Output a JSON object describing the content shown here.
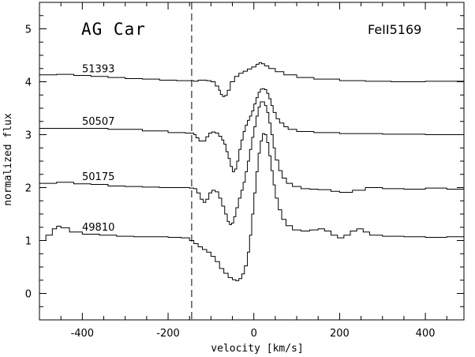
{
  "chart_data": {
    "type": "line",
    "title": "AG Car",
    "subtitle": "FeII5169",
    "xlabel": "velocity [km/s]",
    "ylabel": "normalized flux",
    "xlim": [
      -500,
      490
    ],
    "ylim": [
      -0.5,
      5.5
    ],
    "x_ticks": [
      -400,
      -200,
      0,
      200,
      400
    ],
    "y_ticks": [
      0,
      1,
      2,
      3,
      4,
      5
    ],
    "grid": false,
    "line_color": "#000000",
    "reference_line": {
      "x": -145,
      "style": "dashed"
    },
    "series": [
      {
        "name": "51393",
        "points": [
          [
            -500,
            4.13
          ],
          [
            -460,
            4.14
          ],
          [
            -420,
            4.12
          ],
          [
            -380,
            4.1
          ],
          [
            -340,
            4.08
          ],
          [
            -300,
            4.06
          ],
          [
            -260,
            4.05
          ],
          [
            -220,
            4.03
          ],
          [
            -180,
            4.02
          ],
          [
            -150,
            4.02
          ],
          [
            -140,
            4.01
          ],
          [
            -130,
            4.03
          ],
          [
            -120,
            4.03
          ],
          [
            -110,
            4.02
          ],
          [
            -100,
            4.0
          ],
          [
            -90,
            3.92
          ],
          [
            -82,
            3.84
          ],
          [
            -78,
            3.76
          ],
          [
            -73,
            3.72
          ],
          [
            -68,
            3.74
          ],
          [
            -62,
            3.84
          ],
          [
            -55,
            4.0
          ],
          [
            -45,
            4.1
          ],
          [
            -35,
            4.16
          ],
          [
            -25,
            4.2
          ],
          [
            -15,
            4.24
          ],
          [
            -5,
            4.28
          ],
          [
            5,
            4.33
          ],
          [
            12,
            4.36
          ],
          [
            18,
            4.34
          ],
          [
            25,
            4.3
          ],
          [
            35,
            4.25
          ],
          [
            50,
            4.19
          ],
          [
            70,
            4.13
          ],
          [
            100,
            4.08
          ],
          [
            140,
            4.05
          ],
          [
            200,
            4.02
          ],
          [
            260,
            4.01
          ],
          [
            320,
            4.0
          ],
          [
            400,
            4.01
          ],
          [
            490,
            4.0
          ]
        ]
      },
      {
        "name": "50507",
        "points": [
          [
            -500,
            3.12
          ],
          [
            -420,
            3.12
          ],
          [
            -340,
            3.1
          ],
          [
            -260,
            3.07
          ],
          [
            -200,
            3.04
          ],
          [
            -160,
            3.03
          ],
          [
            -150,
            3.03
          ],
          [
            -140,
            3.0
          ],
          [
            -135,
            2.94
          ],
          [
            -128,
            2.88
          ],
          [
            -120,
            2.88
          ],
          [
            -112,
            2.96
          ],
          [
            -105,
            3.03
          ],
          [
            -98,
            3.05
          ],
          [
            -90,
            3.03
          ],
          [
            -82,
            2.97
          ],
          [
            -75,
            2.9
          ],
          [
            -70,
            2.82
          ],
          [
            -65,
            2.68
          ],
          [
            -60,
            2.55
          ],
          [
            -55,
            2.4
          ],
          [
            -50,
            2.3
          ],
          [
            -45,
            2.35
          ],
          [
            -40,
            2.5
          ],
          [
            -35,
            2.72
          ],
          [
            -30,
            2.9
          ],
          [
            -25,
            3.06
          ],
          [
            -20,
            3.18
          ],
          [
            -15,
            3.27
          ],
          [
            -10,
            3.35
          ],
          [
            -5,
            3.45
          ],
          [
            0,
            3.58
          ],
          [
            5,
            3.7
          ],
          [
            10,
            3.8
          ],
          [
            15,
            3.86
          ],
          [
            20,
            3.87
          ],
          [
            25,
            3.85
          ],
          [
            30,
            3.78
          ],
          [
            35,
            3.68
          ],
          [
            40,
            3.55
          ],
          [
            45,
            3.42
          ],
          [
            52,
            3.3
          ],
          [
            60,
            3.22
          ],
          [
            70,
            3.15
          ],
          [
            80,
            3.1
          ],
          [
            100,
            3.06
          ],
          [
            140,
            3.04
          ],
          [
            200,
            3.02
          ],
          [
            300,
            3.01
          ],
          [
            400,
            3.0
          ],
          [
            490,
            3.0
          ]
        ]
      },
      {
        "name": "50175",
        "points": [
          [
            -500,
            2.08
          ],
          [
            -460,
            2.1
          ],
          [
            -420,
            2.07
          ],
          [
            -380,
            2.06
          ],
          [
            -340,
            2.03
          ],
          [
            -300,
            2.02
          ],
          [
            -260,
            2.01
          ],
          [
            -220,
            2.0
          ],
          [
            -180,
            2.0
          ],
          [
            -150,
            1.99
          ],
          [
            -140,
            1.98
          ],
          [
            -133,
            1.9
          ],
          [
            -125,
            1.78
          ],
          [
            -118,
            1.72
          ],
          [
            -112,
            1.78
          ],
          [
            -105,
            1.9
          ],
          [
            -98,
            1.95
          ],
          [
            -90,
            1.92
          ],
          [
            -82,
            1.8
          ],
          [
            -75,
            1.65
          ],
          [
            -68,
            1.5
          ],
          [
            -62,
            1.36
          ],
          [
            -57,
            1.3
          ],
          [
            -52,
            1.33
          ],
          [
            -47,
            1.45
          ],
          [
            -42,
            1.62
          ],
          [
            -36,
            1.8
          ],
          [
            -30,
            1.95
          ],
          [
            -25,
            2.1
          ],
          [
            -20,
            2.3
          ],
          [
            -15,
            2.5
          ],
          [
            -10,
            2.72
          ],
          [
            -5,
            2.95
          ],
          [
            0,
            3.15
          ],
          [
            5,
            3.35
          ],
          [
            10,
            3.52
          ],
          [
            15,
            3.62
          ],
          [
            20,
            3.62
          ],
          [
            25,
            3.55
          ],
          [
            30,
            3.42
          ],
          [
            35,
            3.22
          ],
          [
            40,
            3.0
          ],
          [
            45,
            2.75
          ],
          [
            50,
            2.52
          ],
          [
            58,
            2.32
          ],
          [
            66,
            2.18
          ],
          [
            76,
            2.08
          ],
          [
            90,
            2.02
          ],
          [
            110,
            1.98
          ],
          [
            130,
            1.97
          ],
          [
            150,
            1.96
          ],
          [
            180,
            1.93
          ],
          [
            200,
            1.91
          ],
          [
            230,
            1.95
          ],
          [
            260,
            2.0
          ],
          [
            300,
            1.98
          ],
          [
            350,
            1.97
          ],
          [
            400,
            1.99
          ],
          [
            450,
            1.97
          ],
          [
            490,
            1.98
          ]
        ]
      },
      {
        "name": "49810",
        "points": [
          [
            -500,
            1.0
          ],
          [
            -485,
            1.1
          ],
          [
            -470,
            1.22
          ],
          [
            -460,
            1.27
          ],
          [
            -450,
            1.24
          ],
          [
            -430,
            1.16
          ],
          [
            -400,
            1.12
          ],
          [
            -360,
            1.1
          ],
          [
            -320,
            1.08
          ],
          [
            -280,
            1.07
          ],
          [
            -240,
            1.07
          ],
          [
            -200,
            1.06
          ],
          [
            -170,
            1.05
          ],
          [
            -150,
            1.0
          ],
          [
            -140,
            0.94
          ],
          [
            -130,
            0.88
          ],
          [
            -120,
            0.83
          ],
          [
            -110,
            0.78
          ],
          [
            -100,
            0.7
          ],
          [
            -90,
            0.6
          ],
          [
            -80,
            0.47
          ],
          [
            -70,
            0.38
          ],
          [
            -60,
            0.3
          ],
          [
            -50,
            0.26
          ],
          [
            -42,
            0.24
          ],
          [
            -35,
            0.28
          ],
          [
            -28,
            0.37
          ],
          [
            -22,
            0.52
          ],
          [
            -15,
            0.78
          ],
          [
            -10,
            1.1
          ],
          [
            -5,
            1.5
          ],
          [
            0,
            1.9
          ],
          [
            5,
            2.3
          ],
          [
            10,
            2.65
          ],
          [
            15,
            2.88
          ],
          [
            20,
            3.02
          ],
          [
            25,
            3.0
          ],
          [
            30,
            2.85
          ],
          [
            35,
            2.6
          ],
          [
            40,
            2.32
          ],
          [
            45,
            2.05
          ],
          [
            50,
            1.8
          ],
          [
            57,
            1.58
          ],
          [
            65,
            1.4
          ],
          [
            75,
            1.28
          ],
          [
            90,
            1.2
          ],
          [
            110,
            1.18
          ],
          [
            130,
            1.2
          ],
          [
            150,
            1.22
          ],
          [
            165,
            1.18
          ],
          [
            180,
            1.1
          ],
          [
            195,
            1.05
          ],
          [
            210,
            1.1
          ],
          [
            225,
            1.18
          ],
          [
            240,
            1.22
          ],
          [
            255,
            1.16
          ],
          [
            270,
            1.1
          ],
          [
            300,
            1.08
          ],
          [
            350,
            1.07
          ],
          [
            400,
            1.06
          ],
          [
            450,
            1.07
          ],
          [
            490,
            1.06
          ]
        ]
      }
    ]
  }
}
